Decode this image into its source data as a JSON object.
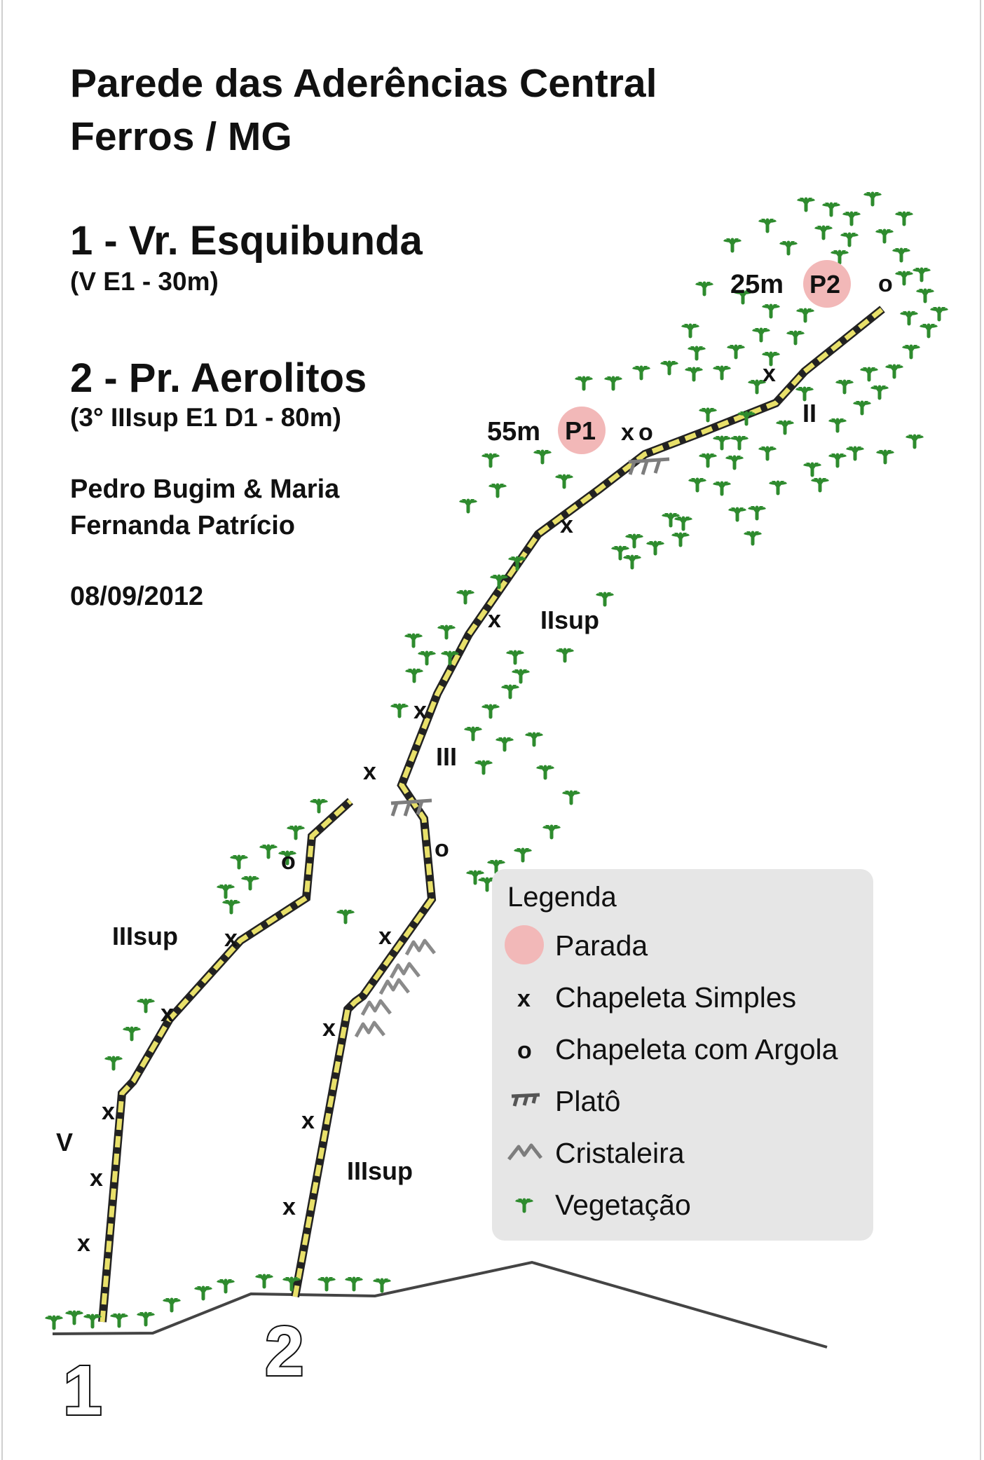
{
  "title": {
    "line1": "Parede das Aderências Central",
    "line2": "Ferros / MG"
  },
  "routes": [
    {
      "name": "1 - Vr. Esquibunda",
      "info": "(V E1 - 30m)"
    },
    {
      "name": "2 - Pr. Aerolitos",
      "info": "(3° IIIsup E1 D1 - 80m)"
    }
  ],
  "authors": {
    "line1": "Pedro Bugim & Maria",
    "line2": "Fernanda Patrício"
  },
  "date": "08/09/2012",
  "topo": {
    "route_numbers": [
      "1",
      "2"
    ],
    "belays": [
      {
        "label": "P1",
        "distance": "55m"
      },
      {
        "label": "P2",
        "distance": "25m"
      }
    ],
    "grades": {
      "route1_lower": "V",
      "route1_upper": "IIIsup",
      "route2_lower": "IIIsup",
      "route2_middle": "III",
      "route2_upper": "IIsup",
      "route2_top": "II"
    },
    "anchor_symbols": {
      "bolt": "x",
      "ring": "o"
    }
  },
  "legend": {
    "title": "Legenda",
    "items": [
      {
        "icon": "belay-circle-icon",
        "label": "Parada"
      },
      {
        "icon": "bolt-x-icon",
        "label": "Chapeleta Simples"
      },
      {
        "icon": "ring-o-icon",
        "label": "Chapeleta com Argola"
      },
      {
        "icon": "ledge-icon",
        "label": "Platô"
      },
      {
        "icon": "crystal-icon",
        "label": "Cristaleira"
      },
      {
        "icon": "vegetation-icon",
        "label": "Vegetação"
      }
    ]
  },
  "colors": {
    "route_line": "#e8e06a",
    "belay_fill": "#f2b8b8",
    "vegetation": "#2e8b2e",
    "ledge": "#808080",
    "ground": "#444444",
    "legend_bg": "#e6e6e6"
  }
}
